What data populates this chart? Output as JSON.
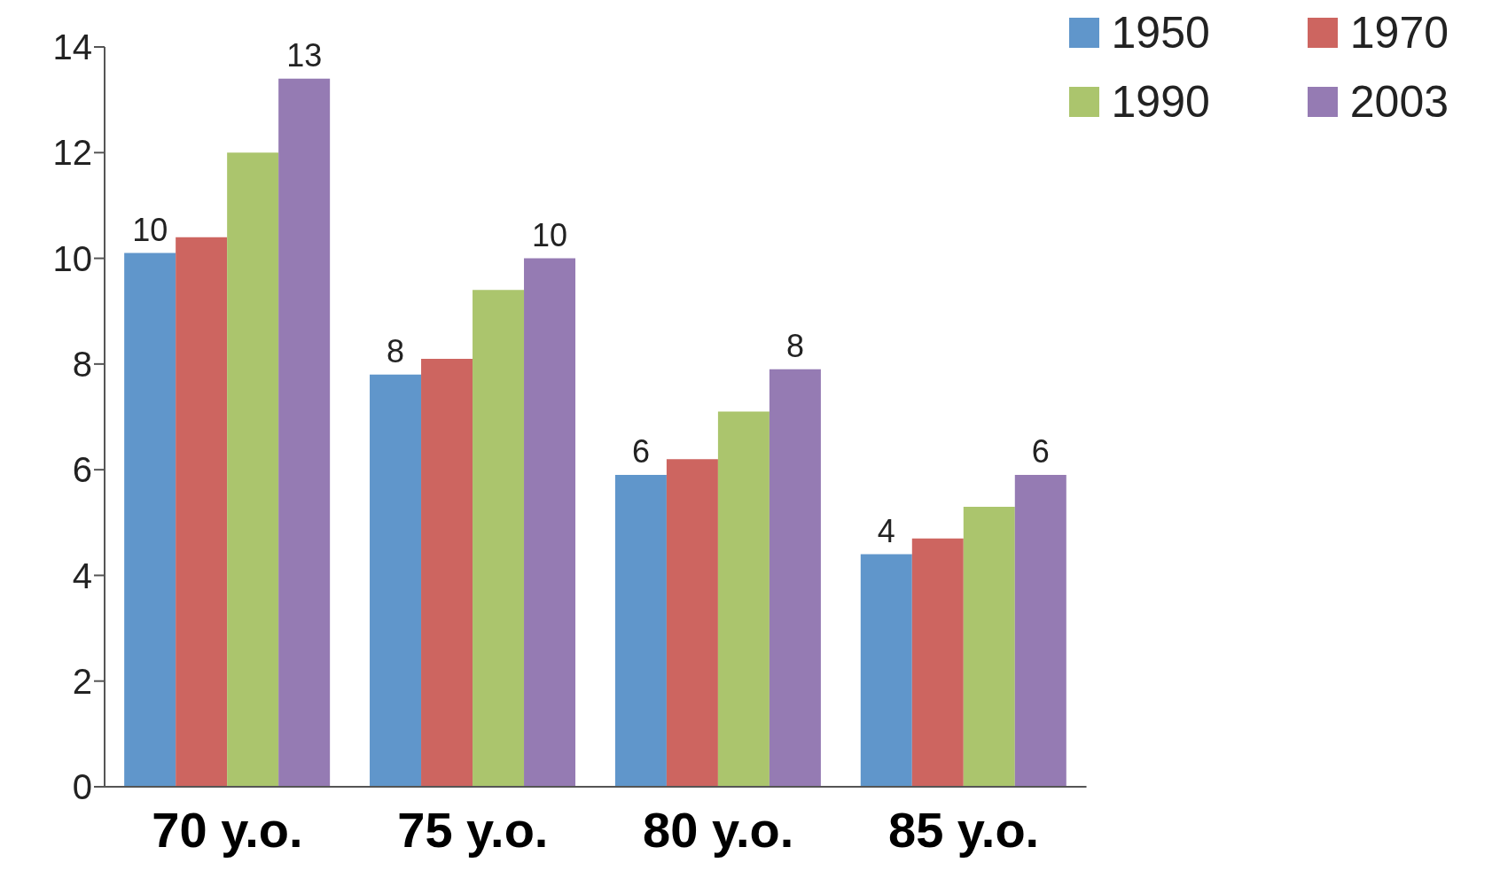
{
  "chart_data": {
    "type": "bar",
    "categories": [
      "70 y.o.",
      "75 y.o.",
      "80 y.o.",
      "85 y.o."
    ],
    "series": [
      {
        "name": "1950",
        "color": "#6096cb",
        "values": [
          10.1,
          7.8,
          5.9,
          4.4
        ],
        "value_labels": [
          "10",
          "8",
          "6",
          "4"
        ]
      },
      {
        "name": "1970",
        "color": "#cd6560",
        "values": [
          10.4,
          8.1,
          6.2,
          4.7
        ]
      },
      {
        "name": "1990",
        "color": "#abc56d",
        "values": [
          12.0,
          9.4,
          7.1,
          5.3
        ]
      },
      {
        "name": "2003",
        "color": "#957bb3",
        "values": [
          13.4,
          10.0,
          7.9,
          5.9
        ],
        "value_labels": [
          "13",
          "10",
          "8",
          "6"
        ]
      }
    ],
    "ylim": [
      0,
      14
    ],
    "yticks": [
      0,
      2,
      4,
      6,
      8,
      10,
      12,
      14
    ],
    "grid": false,
    "legend": "top right"
  }
}
